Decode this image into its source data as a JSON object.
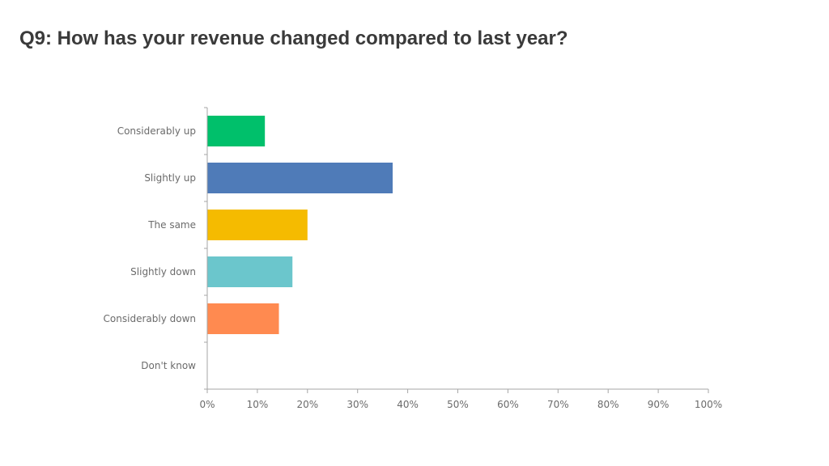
{
  "slide": {
    "title": "Q9: How has your revenue changed compared to last year?"
  },
  "chart_data": {
    "type": "bar",
    "orientation": "horizontal",
    "title": "",
    "xlabel": "",
    "ylabel": "",
    "categories": [
      "Considerably up",
      "Slightly up",
      "The same",
      "Slightly down",
      "Considerably down",
      "Don't know"
    ],
    "values": [
      11.5,
      37,
      20,
      17,
      14.3,
      0
    ],
    "colors": [
      "#00c06b",
      "#4f7bb8",
      "#f5bb00",
      "#6bc6cc",
      "#ff8a50",
      "#cccccc"
    ],
    "xlim": [
      0,
      100
    ],
    "x_ticks": [
      "0%",
      "10%",
      "20%",
      "30%",
      "40%",
      "50%",
      "60%",
      "70%",
      "80%",
      "90%",
      "100%"
    ],
    "grid": false,
    "legend": "none"
  }
}
